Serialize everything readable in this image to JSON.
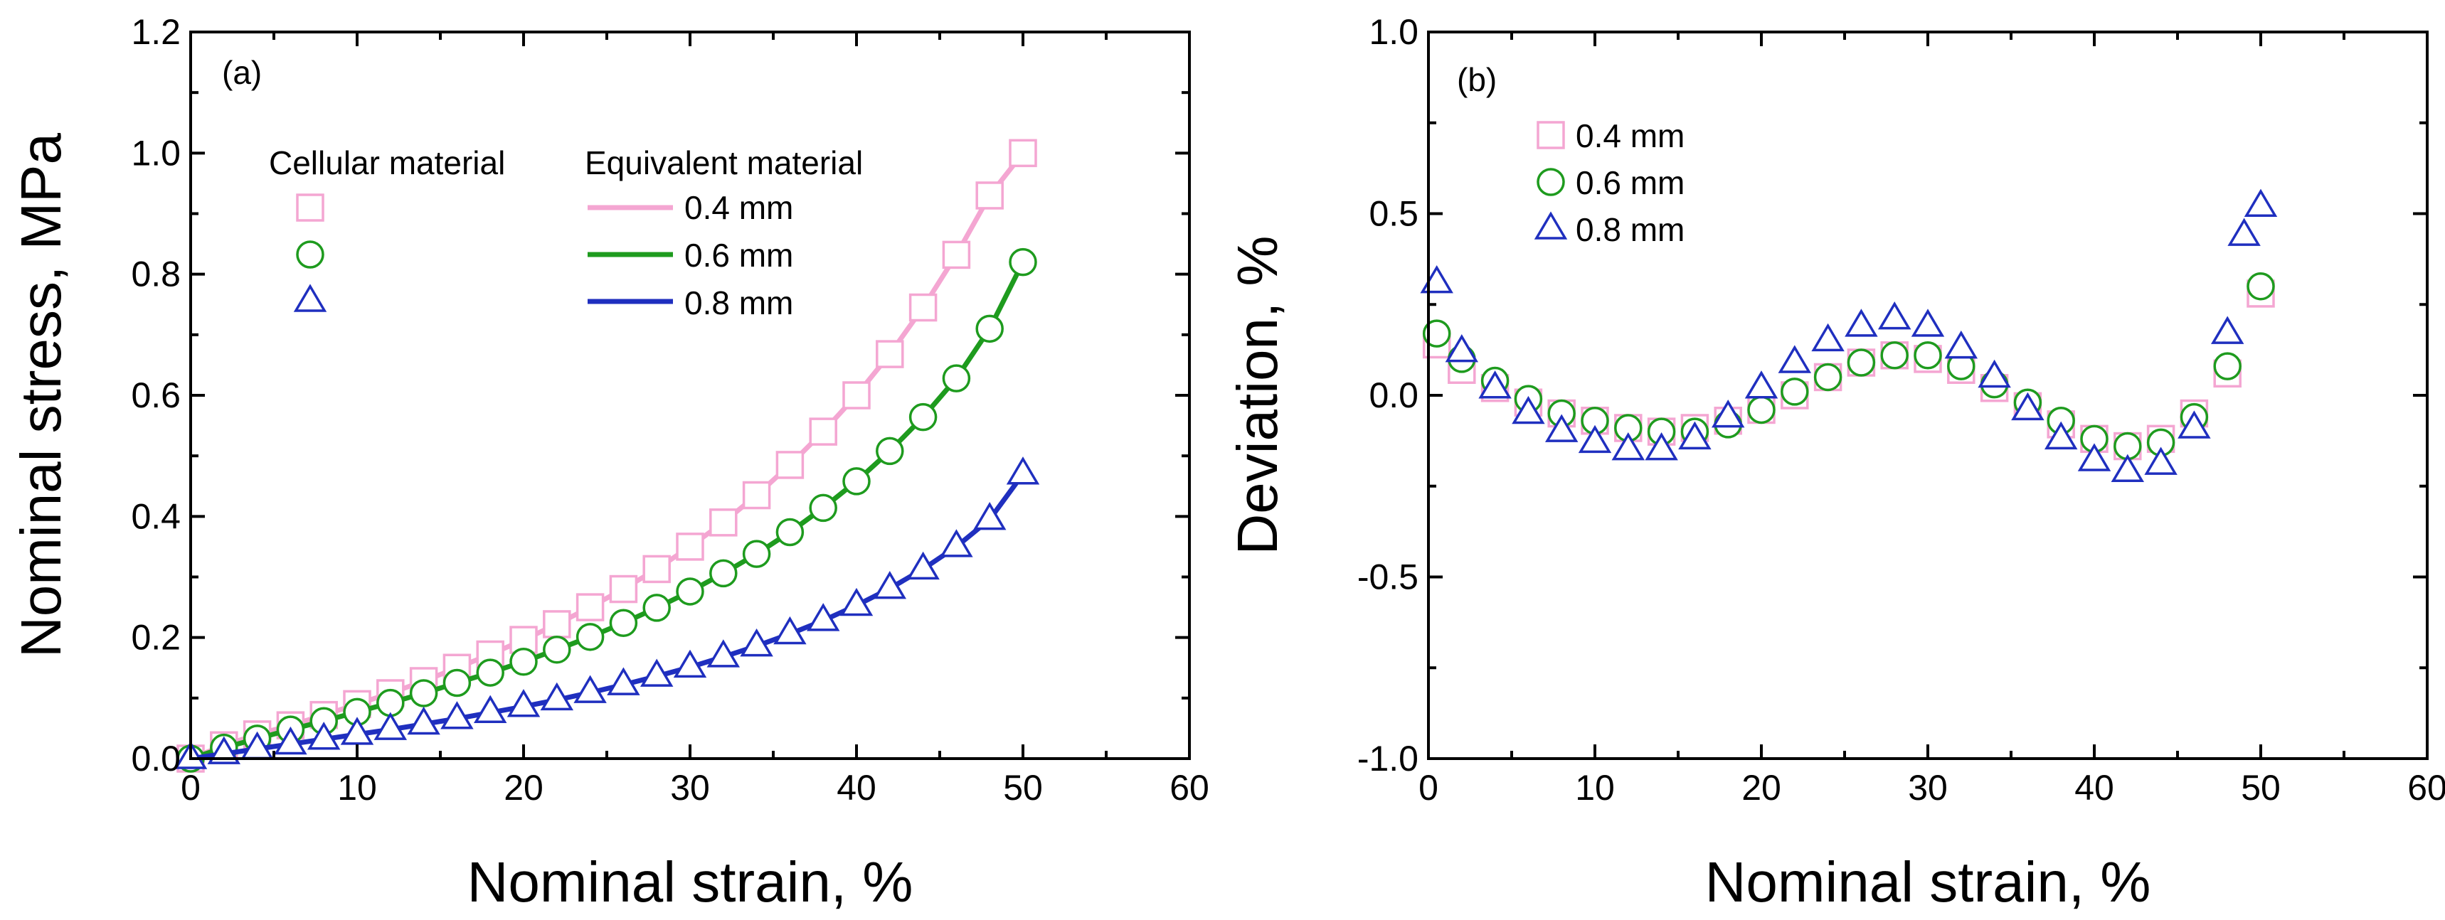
{
  "chart_data": [
    {
      "type": "line",
      "panel_label": "(a)",
      "xlabel": "Nominal strain, %",
      "ylabel": "Nominal stress, MPa",
      "xlim": [
        0,
        60
      ],
      "ylim": [
        0,
        1.2
      ],
      "xticks": [
        "0",
        "10",
        "20",
        "30",
        "40",
        "50",
        "60"
      ],
      "yticks": [
        "0.0",
        "0.2",
        "0.4",
        "0.6",
        "0.8",
        "1.0",
        "1.2"
      ],
      "grid": false,
      "legend_placement": "top-left",
      "legend_headers": [
        "Cellular material",
        "Equivalent material"
      ],
      "series": [
        {
          "name": "0.4 mm",
          "color": "#f4a6d2",
          "marker": "square",
          "x": [
            0,
            2,
            4,
            6,
            8,
            10,
            12,
            14,
            16,
            18,
            20,
            22,
            24,
            26,
            28,
            30,
            32,
            34,
            36,
            38,
            40,
            42,
            44,
            46,
            48,
            50
          ],
          "values": [
            0.0,
            0.022,
            0.04,
            0.055,
            0.072,
            0.09,
            0.108,
            0.128,
            0.15,
            0.172,
            0.196,
            0.222,
            0.25,
            0.28,
            0.313,
            0.35,
            0.39,
            0.435,
            0.485,
            0.54,
            0.6,
            0.668,
            0.745,
            0.832,
            0.93,
            1.0
          ]
        },
        {
          "name": "0.6 mm",
          "color": "#1e9b1e",
          "marker": "circle",
          "x": [
            0,
            2,
            4,
            6,
            8,
            10,
            12,
            14,
            16,
            18,
            20,
            22,
            24,
            26,
            28,
            30,
            32,
            34,
            36,
            38,
            40,
            42,
            44,
            46,
            48,
            50
          ],
          "values": [
            0.0,
            0.018,
            0.033,
            0.048,
            0.062,
            0.077,
            0.092,
            0.108,
            0.125,
            0.142,
            0.16,
            0.18,
            0.201,
            0.224,
            0.249,
            0.276,
            0.306,
            0.338,
            0.374,
            0.414,
            0.458,
            0.508,
            0.564,
            0.628,
            0.71,
            0.82
          ]
        },
        {
          "name": "0.8 mm",
          "color": "#1f2fbf",
          "marker": "triangle",
          "x": [
            0,
            2,
            4,
            6,
            8,
            10,
            12,
            14,
            16,
            18,
            20,
            22,
            24,
            26,
            28,
            30,
            32,
            34,
            36,
            38,
            40,
            42,
            44,
            46,
            48,
            50
          ],
          "values": [
            0.0,
            0.008,
            0.016,
            0.024,
            0.032,
            0.04,
            0.048,
            0.057,
            0.066,
            0.076,
            0.086,
            0.097,
            0.109,
            0.122,
            0.136,
            0.151,
            0.168,
            0.186,
            0.206,
            0.228,
            0.253,
            0.281,
            0.313,
            0.35,
            0.395,
            0.47
          ]
        }
      ]
    },
    {
      "type": "scatter",
      "panel_label": "(b)",
      "xlabel": "Nominal strain, %",
      "ylabel": "Deviation, %",
      "xlim": [
        0,
        60
      ],
      "ylim": [
        -1.0,
        1.0
      ],
      "xticks": [
        "0",
        "10",
        "20",
        "30",
        "40",
        "50",
        "60"
      ],
      "yticks": [
        "-1.0",
        "-0.5",
        "0.0",
        "0.5",
        "1.0"
      ],
      "grid": false,
      "legend_placement": "top-left",
      "series": [
        {
          "name": "0.4 mm",
          "color": "#f4a6d2",
          "marker": "square",
          "x": [
            0.5,
            2,
            4,
            6,
            8,
            10,
            12,
            14,
            16,
            18,
            20,
            22,
            24,
            26,
            28,
            30,
            32,
            34,
            36,
            38,
            40,
            42,
            44,
            46,
            48,
            50
          ],
          "values": [
            0.14,
            0.07,
            0.02,
            -0.02,
            -0.05,
            -0.07,
            -0.09,
            -0.1,
            -0.09,
            -0.07,
            -0.04,
            0.0,
            0.05,
            0.09,
            0.11,
            0.1,
            0.07,
            0.02,
            -0.03,
            -0.08,
            -0.12,
            -0.14,
            -0.12,
            -0.05,
            0.06,
            0.28
          ]
        },
        {
          "name": "0.6 mm",
          "color": "#1e9b1e",
          "marker": "circle",
          "x": [
            0.5,
            2,
            4,
            6,
            8,
            10,
            12,
            14,
            16,
            18,
            20,
            22,
            24,
            26,
            28,
            30,
            32,
            34,
            36,
            38,
            40,
            42,
            44,
            46,
            48,
            50
          ],
          "values": [
            0.17,
            0.1,
            0.04,
            -0.01,
            -0.05,
            -0.07,
            -0.09,
            -0.1,
            -0.1,
            -0.08,
            -0.04,
            0.01,
            0.05,
            0.09,
            0.11,
            0.11,
            0.08,
            0.03,
            -0.02,
            -0.07,
            -0.12,
            -0.14,
            -0.13,
            -0.06,
            0.08,
            0.3
          ]
        },
        {
          "name": "0.8 mm",
          "color": "#1f2fbf",
          "marker": "triangle",
          "x": [
            0.5,
            2,
            4,
            6,
            8,
            10,
            12,
            14,
            16,
            18,
            20,
            22,
            24,
            26,
            28,
            30,
            32,
            34,
            36,
            38,
            40,
            42,
            44,
            46,
            48,
            49,
            50
          ],
          "values": [
            0.31,
            0.12,
            0.02,
            -0.05,
            -0.1,
            -0.13,
            -0.15,
            -0.15,
            -0.12,
            -0.06,
            0.02,
            0.09,
            0.15,
            0.19,
            0.21,
            0.19,
            0.13,
            0.05,
            -0.04,
            -0.12,
            -0.18,
            -0.21,
            -0.19,
            -0.09,
            0.17,
            0.44,
            0.52
          ]
        }
      ]
    }
  ]
}
